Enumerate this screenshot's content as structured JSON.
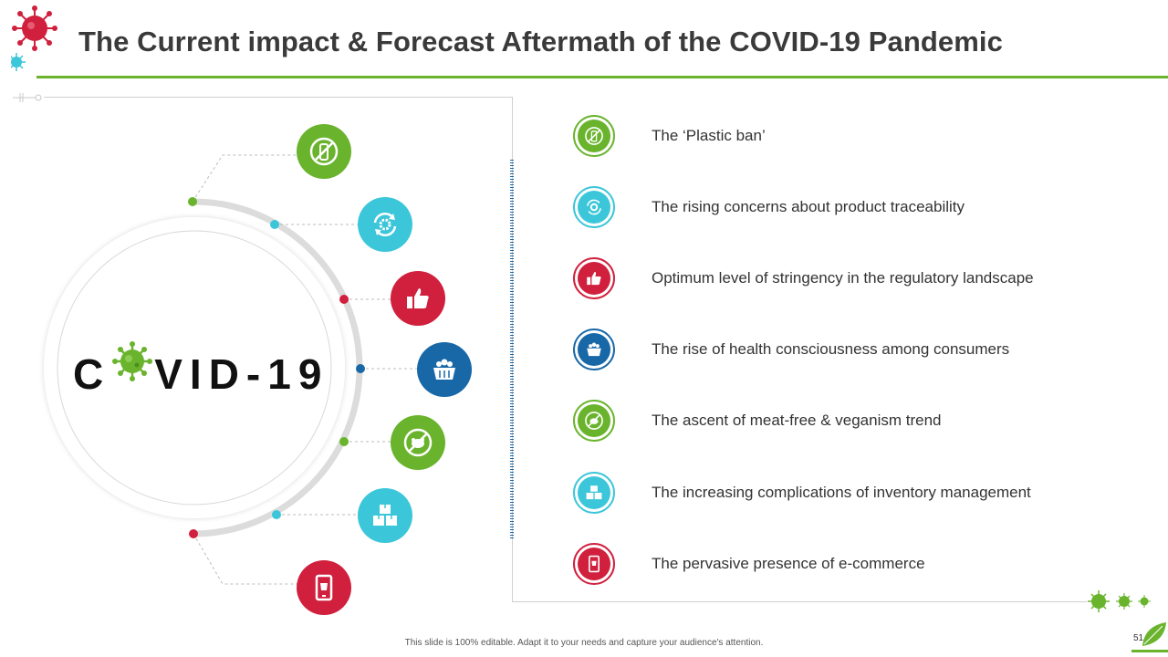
{
  "title": "The Current impact & Forecast Aftermath of the COVID-19 Pandemic",
  "center": {
    "prefix": "C",
    "suffix": "VID-19"
  },
  "items": [
    {
      "label": "The ‘Plastic ban’",
      "icon": "no-plastic-bottle-icon",
      "color": "#6ab42d"
    },
    {
      "label": "The rising concerns about product traceability",
      "icon": "gear-cycle-icon",
      "color": "#3cc6d9"
    },
    {
      "label": "Optimum level of stringency in the regulatory landscape",
      "icon": "thumbs-up-icon",
      "color": "#d0203d"
    },
    {
      "label": "The rise of health consciousness among consumers",
      "icon": "produce-basket-icon",
      "color": "#1868a8"
    },
    {
      "label": "The ascent of meat-free & veganism trend",
      "icon": "no-meat-icon",
      "color": "#6ab42d"
    },
    {
      "label": "The increasing complications of inventory management",
      "icon": "stacked-boxes-icon",
      "color": "#3cc6d9"
    },
    {
      "label": "The pervasive presence of e-commerce",
      "icon": "mobile-shopping-icon",
      "color": "#d0203d"
    }
  ],
  "footer": {
    "note": "This slide is 100% editable. Adapt it to your needs and capture your audience's attention.",
    "page": "51"
  }
}
